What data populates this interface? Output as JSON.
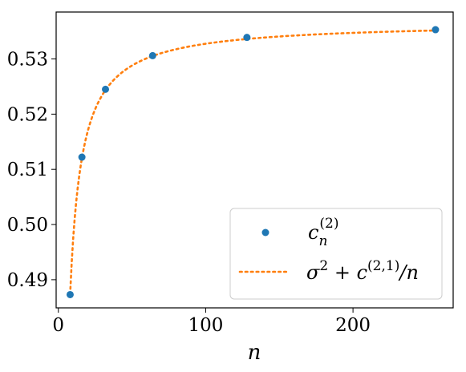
{
  "chart_data": {
    "type": "scatter",
    "xlabel": "n",
    "ylabel": "",
    "xlim": [
      -1.5,
      268
    ],
    "ylim": [
      0.4849,
      0.5385
    ],
    "x_ticks": [
      0,
      100,
      200
    ],
    "x_tick_labels": [
      "0",
      "100",
      "200"
    ],
    "y_ticks": [
      0.49,
      0.5,
      0.51,
      0.52,
      0.53
    ],
    "y_tick_labels": [
      "0.49",
      "0.50",
      "0.51",
      "0.52",
      "0.53"
    ],
    "grid": false,
    "legend_position": "lower-right",
    "series": [
      {
        "name_main": "c",
        "name_sub": "n",
        "name_sup": "(2)",
        "kind": "scatter",
        "color": "#1f77b4",
        "x": [
          8,
          16,
          32,
          64,
          128,
          256
        ],
        "y": [
          0.4873,
          0.5122,
          0.5245,
          0.5306,
          0.5339,
          0.5353
        ]
      },
      {
        "name_sigma": "σ",
        "name_sigma_sup": "2",
        "name_plus": " + ",
        "name_c": "c",
        "name_c_sup": "(2,1)",
        "name_over_n": "/n",
        "kind": "fit-line",
        "style": "dotted",
        "color": "#ff7f0e",
        "formula": "sigma2 + c21 / n",
        "sigma2": 0.5367,
        "c21": -0.3948,
        "x_start": 8,
        "x_end": 256
      }
    ]
  }
}
